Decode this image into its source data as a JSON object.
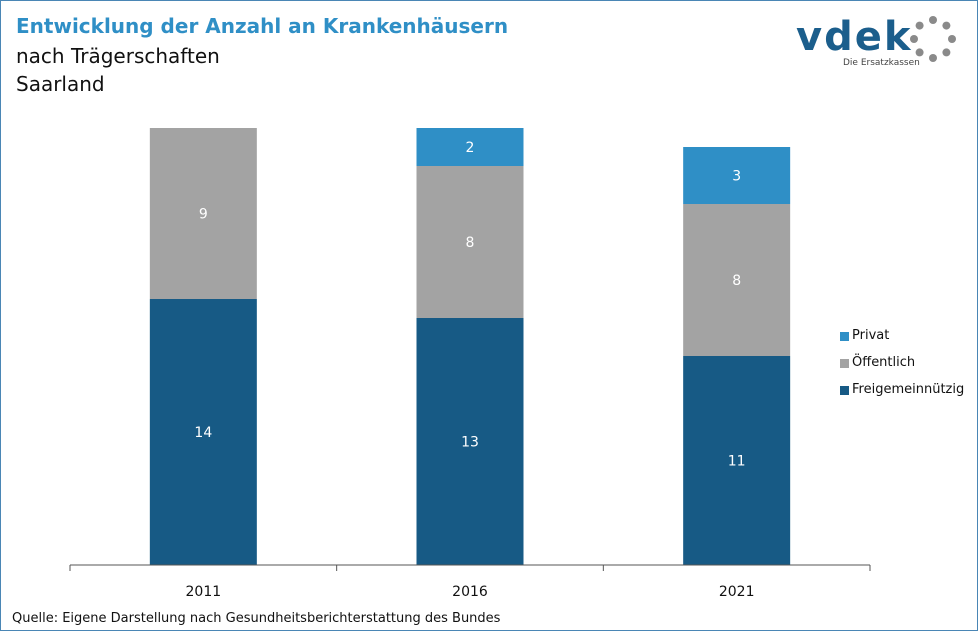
{
  "header": {
    "title": "Entwicklung der Anzahl an Krankenhäusern",
    "subtitle_line1": "nach Trägerschaften",
    "subtitle_line2": "Saarland"
  },
  "logo": {
    "wordmark": "vdek",
    "tagline": "Die Ersatzkassen"
  },
  "footer": {
    "source": "Quelle: Eigene Darstellung nach Gesundheitsberichterstattung  des Bundes"
  },
  "colors": {
    "Privat": "#2f8fc6",
    "Öffentlich": "#a3a3a3",
    "Freigemeinnützig": "#175a85",
    "title": "#2f8fc6"
  },
  "chart_data": {
    "type": "bar",
    "stacked": true,
    "categories": [
      "2011",
      "2016",
      "2021"
    ],
    "series": [
      {
        "name": "Freigemeinnützig",
        "values": [
          14,
          13,
          11
        ]
      },
      {
        "name": "Öffentlich",
        "values": [
          9,
          8,
          8
        ]
      },
      {
        "name": "Privat",
        "values": [
          0,
          2,
          3
        ]
      }
    ],
    "legend": [
      "Privat",
      "Öffentlich",
      "Freigemeinnützig"
    ],
    "legend_position": "right",
    "ylim": [
      0,
      23
    ],
    "grid": false,
    "title": "Entwicklung der Anzahl an Krankenhäusern"
  }
}
